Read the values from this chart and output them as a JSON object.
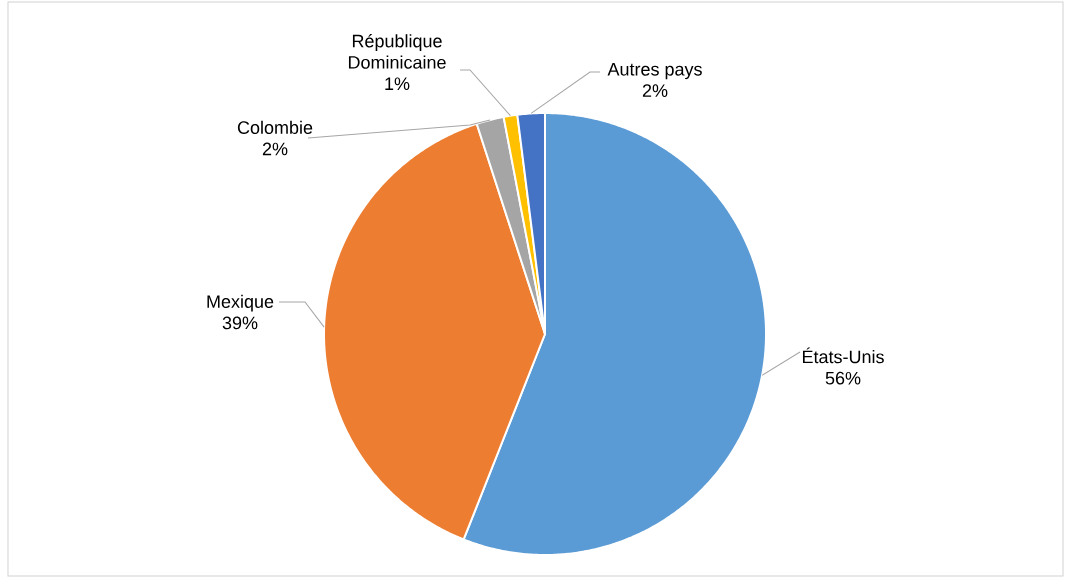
{
  "chart_data": {
    "type": "pie",
    "categories": [
      "États-Unis",
      "Mexique",
      "Colombie",
      "République Dominicaine",
      "Autres pays"
    ],
    "values": [
      56,
      39,
      2,
      1,
      2
    ],
    "colors": [
      "#5b9bd5",
      "#ed7d31",
      "#a5a5a5",
      "#ffc000",
      "#4472c4"
    ],
    "value_labels": [
      "56%",
      "39%",
      "2%",
      "1%",
      "2%"
    ]
  }
}
